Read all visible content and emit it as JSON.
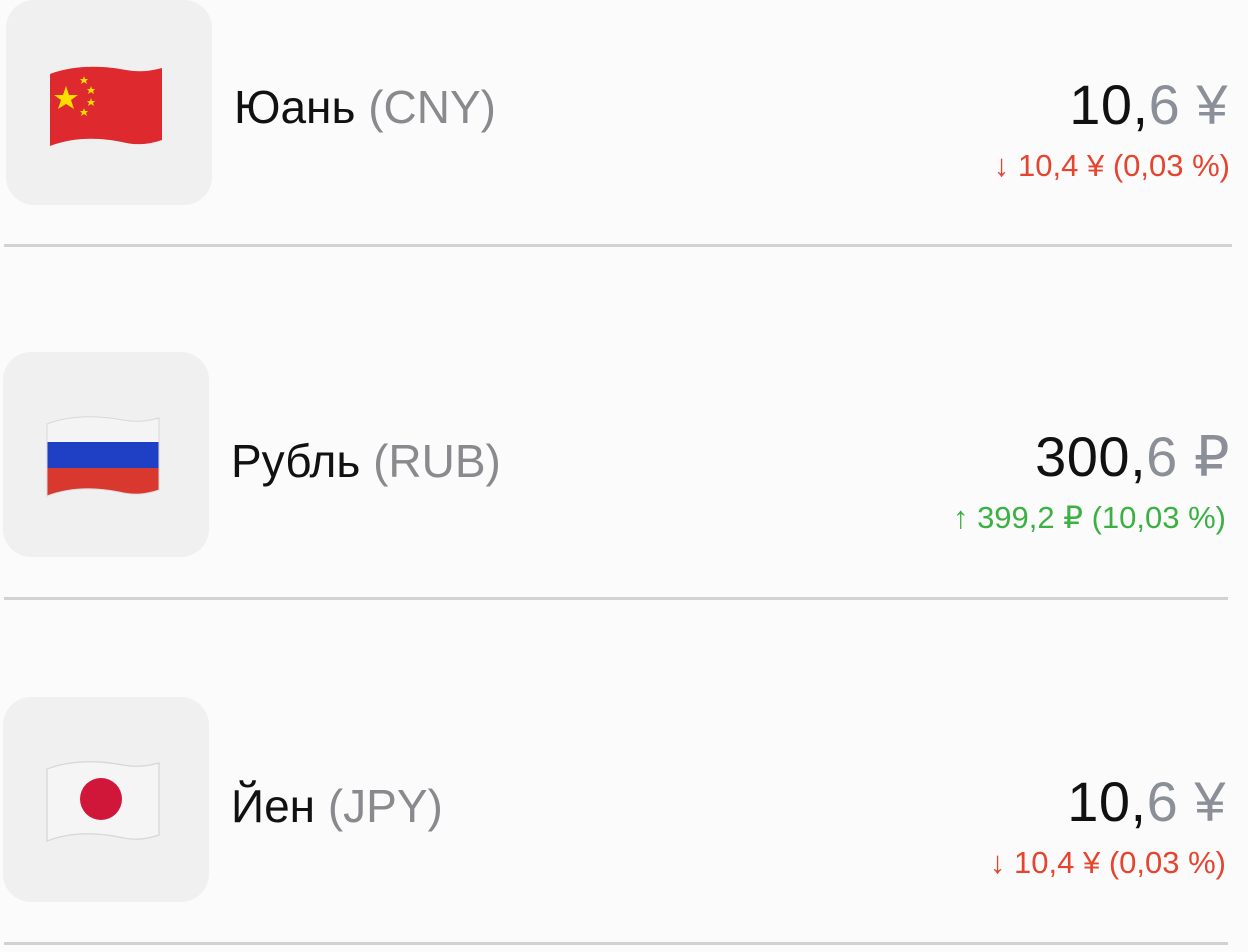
{
  "currencies": [
    {
      "name": "Юань",
      "code": "(CNY)",
      "value_int": "10,",
      "value_frac": "6",
      "symbol": "¥",
      "change_arrow": "↓",
      "change_text": "10,4 ¥ (0,03 %)",
      "direction": "down",
      "flag": "china-flag-icon"
    },
    {
      "name": "Рубль",
      "code": "(RUB)",
      "value_int": "300,",
      "value_frac": "6",
      "symbol": "₽",
      "change_arrow": "↑",
      "change_text": "399,2 ₽ (10,03 %)",
      "direction": "up",
      "flag": "russia-flag-icon"
    },
    {
      "name": "Йен",
      "code": "(JPY)",
      "value_int": "10,",
      "value_frac": "6",
      "symbol": "¥",
      "change_arrow": "↓",
      "change_text": "10,4 ¥ (0,03 %)",
      "direction": "down",
      "flag": "japan-flag-icon"
    }
  ],
  "colors": {
    "down": "#e5442f",
    "up": "#3bb143",
    "secondary": "#8a8f98"
  }
}
